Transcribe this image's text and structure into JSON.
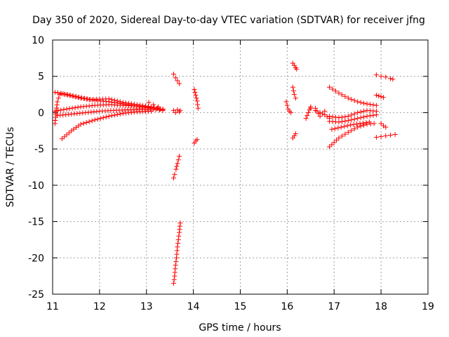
{
  "chart_data": {
    "type": "scatter",
    "title": "Day 350 of 2020, Sidereal Day-to-day VTEC variation (SDTVAR) for receiver jfng",
    "xlabel": "GPS time / hours",
    "ylabel": "SDTVAR / TECUs",
    "xlim": [
      11,
      19
    ],
    "ylim": [
      -25,
      10
    ],
    "xticks": [
      "11",
      "12",
      "13",
      "14",
      "15",
      "16",
      "17",
      "18",
      "19"
    ],
    "yticks": [
      "10",
      "5",
      "0",
      "-5",
      "-10",
      "-15",
      "-20",
      "-25"
    ],
    "grid": true,
    "marker": "plus",
    "color": "#ff0000",
    "segments": [
      {
        "name": "arc-a",
        "x": [
          11.05,
          11.3,
          11.6,
          11.9,
          12.2,
          12.5,
          12.8,
          13.1
        ],
        "y": [
          2.8,
          2.5,
          2.0,
          1.7,
          1.5,
          1.2,
          0.9,
          0.6
        ]
      },
      {
        "name": "arc-b",
        "x": [
          11.2,
          11.5,
          11.8,
          12.2,
          12.5,
          12.8,
          13.1,
          13.3
        ],
        "y": [
          2.6,
          2.2,
          1.8,
          1.9,
          1.4,
          1.1,
          0.8,
          0.5
        ]
      },
      {
        "name": "arc-c",
        "x": [
          11.05,
          11.3,
          11.6,
          11.9,
          12.2,
          12.5,
          12.8,
          13.1,
          13.35
        ],
        "y": [
          0.2,
          0.5,
          0.8,
          1.0,
          1.1,
          1.0,
          0.9,
          0.7,
          0.4
        ]
      },
      {
        "name": "arc-d",
        "x": [
          11.1,
          11.4,
          11.7,
          12.0,
          12.3,
          12.6,
          12.9,
          13.2,
          13.35
        ],
        "y": [
          -0.4,
          -0.2,
          0.0,
          0.2,
          0.3,
          0.4,
          0.5,
          0.4,
          0.3
        ]
      },
      {
        "name": "arc-e",
        "x": [
          11.2,
          11.4,
          11.6,
          11.9,
          12.2,
          12.5,
          12.8,
          13.1
        ],
        "y": [
          -3.6,
          -2.5,
          -1.6,
          -1.0,
          -0.5,
          -0.1,
          0.1,
          0.2
        ]
      },
      {
        "name": "arc-f",
        "x": [
          11.05,
          11.1,
          11.15
        ],
        "y": [
          -1.5,
          1.5,
          2.5
        ]
      },
      {
        "name": "arc-g",
        "x": [
          13.05,
          13.15,
          13.25,
          13.35
        ],
        "y": [
          1.4,
          1.1,
          0.8,
          0.5
        ]
      },
      {
        "name": "arc-h",
        "x": [
          13.58,
          13.62,
          13.66,
          13.7
        ],
        "y": [
          5.3,
          4.8,
          4.4,
          4.0
        ]
      },
      {
        "name": "arc-i",
        "x": [
          13.58,
          13.62,
          13.66,
          13.7,
          13.72
        ],
        "y": [
          0.3,
          0.0,
          0.4,
          0.1,
          0.3
        ]
      },
      {
        "name": "arc-j",
        "x": [
          13.58,
          13.6,
          13.63,
          13.66,
          13.7
        ],
        "y": [
          -9.0,
          -8.5,
          -7.8,
          -7.0,
          -6.0
        ]
      },
      {
        "name": "arc-k",
        "x": [
          13.58,
          13.6,
          13.62,
          13.64,
          13.66,
          13.68,
          13.7,
          13.72
        ],
        "y": [
          -23.5,
          -22.5,
          -21.0,
          -20.0,
          -18.5,
          -17.5,
          -16.5,
          -15.2
        ]
      },
      {
        "name": "arc-l",
        "x": [
          14.02,
          14.05,
          14.08,
          14.1
        ],
        "y": [
          3.2,
          2.4,
          1.6,
          0.6
        ]
      },
      {
        "name": "arc-m",
        "x": [
          14.02,
          14.05,
          14.08
        ],
        "y": [
          -4.2,
          -3.9,
          -3.7
        ]
      },
      {
        "name": "arc-n",
        "x": [
          15.98,
          16.0,
          16.02,
          16.05,
          16.08
        ],
        "y": [
          1.5,
          1.0,
          0.5,
          0.2,
          0.0
        ]
      },
      {
        "name": "arc-o",
        "x": [
          16.12,
          16.15,
          16.18,
          16.2
        ],
        "y": [
          6.8,
          6.5,
          6.2,
          6.0
        ]
      },
      {
        "name": "arc-p",
        "x": [
          16.12,
          16.15,
          16.18
        ],
        "y": [
          3.5,
          2.5,
          2.0
        ]
      },
      {
        "name": "arc-q",
        "x": [
          16.12,
          16.15,
          16.18
        ],
        "y": [
          -3.5,
          -3.2,
          -2.9
        ]
      },
      {
        "name": "arc-r",
        "x": [
          16.5,
          16.6,
          16.7,
          16.8,
          16.9
        ],
        "y": [
          0.6,
          0.3,
          0.0,
          -0.3,
          -0.8
        ]
      },
      {
        "name": "arc-s",
        "x": [
          16.4,
          16.5,
          16.6,
          16.7,
          16.8
        ],
        "y": [
          -0.8,
          0.8,
          0.6,
          -0.5,
          0.2
        ]
      },
      {
        "name": "arc-t",
        "x": [
          16.9,
          17.1,
          17.3,
          17.5,
          17.7,
          17.9
        ],
        "y": [
          3.5,
          2.7,
          2.0,
          1.5,
          1.2,
          1.0
        ]
      },
      {
        "name": "arc-u",
        "x": [
          16.9,
          17.1,
          17.3,
          17.5,
          17.7,
          17.9
        ],
        "y": [
          -0.5,
          -0.7,
          -0.5,
          0.0,
          0.3,
          0.2
        ]
      },
      {
        "name": "arc-v",
        "x": [
          16.9,
          17.1,
          17.3,
          17.5,
          17.7,
          17.9
        ],
        "y": [
          -1.2,
          -1.3,
          -1.1,
          -0.8,
          -0.5,
          -0.3
        ]
      },
      {
        "name": "arc-w",
        "x": [
          16.9,
          17.1,
          17.3,
          17.5,
          17.7,
          17.85
        ],
        "y": [
          -4.7,
          -3.5,
          -2.7,
          -2.0,
          -1.6,
          -1.5
        ]
      },
      {
        "name": "arc-x",
        "x": [
          16.95,
          17.15,
          17.35,
          17.55,
          17.75
        ],
        "y": [
          -2.3,
          -2.0,
          -1.7,
          -1.5,
          -1.3
        ]
      },
      {
        "name": "arc-y",
        "x": [
          17.9,
          18.0,
          18.1,
          18.2,
          18.25
        ],
        "y": [
          5.2,
          5.0,
          4.9,
          4.7,
          4.6
        ]
      },
      {
        "name": "arc-z",
        "x": [
          17.9,
          17.95,
          18.0,
          18.05
        ],
        "y": [
          2.4,
          2.3,
          2.2,
          2.1
        ]
      },
      {
        "name": "arc-aa",
        "x": [
          18.0,
          18.05,
          18.1
        ],
        "y": [
          -1.5,
          -1.8,
          -2.0
        ]
      },
      {
        "name": "arc-bb",
        "x": [
          17.9,
          18.0,
          18.1,
          18.2,
          18.3
        ],
        "y": [
          -3.4,
          -3.3,
          -3.2,
          -3.1,
          -3.0
        ]
      }
    ]
  }
}
